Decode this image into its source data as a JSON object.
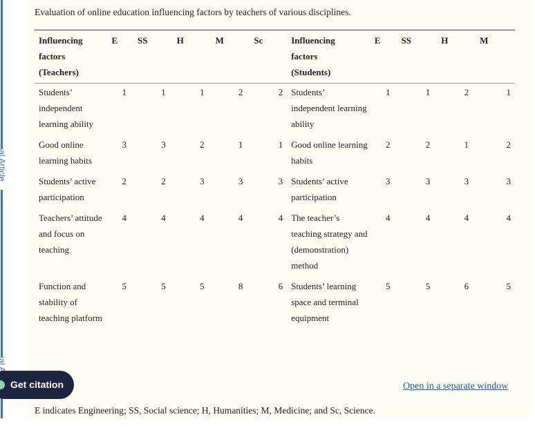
{
  "caption": "Evaluation of online education influencing factors by teachers of various disciplines.",
  "side_tabs": [
    "Journal Article",
    "Journal Article"
  ],
  "table": {
    "header": [
      "Influencing factors (Teachers)",
      "E",
      "SS",
      "H",
      "M",
      "Sc",
      "Influencing factors (Students)",
      "E",
      "SS",
      "H",
      "M"
    ],
    "rows": [
      [
        "Students’ independent learning ability",
        1,
        1,
        1,
        2,
        2,
        "Students’ independent learning ability",
        1,
        1,
        2,
        1
      ],
      [
        "Good online learning habits",
        3,
        3,
        2,
        1,
        1,
        "Good online learning habits",
        2,
        2,
        1,
        2
      ],
      [
        "Students’ active participation",
        2,
        2,
        3,
        3,
        3,
        "Students’ active participation",
        3,
        3,
        3,
        3
      ],
      [
        "Teachers’ attitude and focus on teaching",
        4,
        4,
        4,
        4,
        4,
        "The teacher’s teaching strategy and (demonstration) method",
        4,
        4,
        4,
        4
      ],
      [
        "Function and stability of teaching platform",
        5,
        5,
        5,
        8,
        6,
        "Students’ learning space and terminal equipment",
        5,
        5,
        6,
        5
      ]
    ]
  },
  "open_link": "Open in a separate window",
  "citation_button": "Get citation",
  "footnote": "E indicates Engineering; SS, Social science; H, Humanities; M, Medicine; and Sc, Science."
}
